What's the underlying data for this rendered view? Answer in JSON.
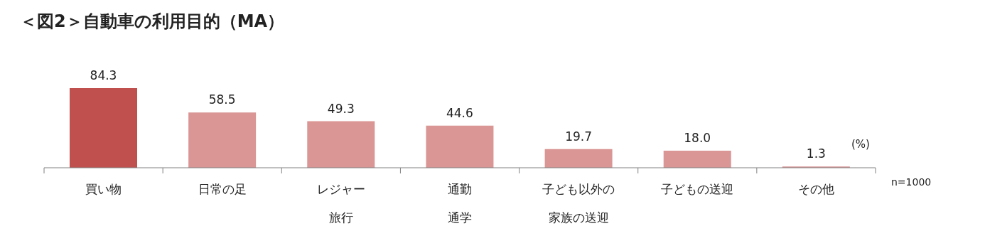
{
  "chart_data": {
    "type": "bar",
    "title": "＜図2＞自動車の利用目的（MA）",
    "categories": [
      "買い物",
      "日常の足",
      "レジャー旅行",
      "通勤通学",
      "子ども以外の家族の送迎",
      "子どもの送迎",
      "その他"
    ],
    "values": [
      84.3,
      58.5,
      49.3,
      44.6,
      19.7,
      18.0,
      1.3
    ],
    "colors": [
      "#c0504d",
      "#d99694",
      "#d99694",
      "#d99694",
      "#d99694",
      "#d99694",
      "#d99694"
    ],
    "value_labels": [
      "84.3",
      "58.5",
      "49.3",
      "44.6",
      "19.7",
      "18.0",
      "1.3"
    ],
    "annotations": [
      "(%)",
      "n=1000"
    ],
    "grid": false,
    "legend": false
  }
}
